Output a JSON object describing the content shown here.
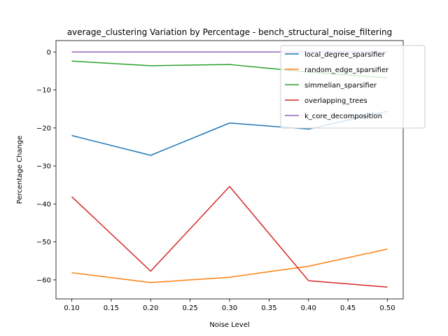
{
  "chart_data": {
    "type": "line",
    "title": "average_clustering Variation by Percentage - bench_structural_noise_filtering",
    "xlabel": "Noise Level",
    "ylabel": "Percentage Change",
    "xlim": [
      0.08,
      0.52
    ],
    "ylim": [
      -65,
      3
    ],
    "xticks": [
      0.1,
      0.15,
      0.2,
      0.25,
      0.3,
      0.35,
      0.4,
      0.45,
      0.5
    ],
    "xtick_labels": [
      "0.10",
      "0.15",
      "0.20",
      "0.25",
      "0.30",
      "0.35",
      "0.40",
      "0.45",
      "0.50"
    ],
    "yticks": [
      0,
      -10,
      -20,
      -30,
      -40,
      -50,
      -60
    ],
    "ytick_labels": [
      "0",
      "−10",
      "−20",
      "−30",
      "−40",
      "−50",
      "−60"
    ],
    "legend_position": "top-right",
    "grid": false,
    "x": [
      0.1,
      0.2,
      0.3,
      0.4,
      0.5
    ],
    "series": [
      {
        "name": "local_degree_sparsifier",
        "color": "#1f77b4",
        "values": [
          -22.0,
          -27.2,
          -18.7,
          -20.3,
          -15.6
        ]
      },
      {
        "name": "random_edge_sparsifier",
        "color": "#ff7f0e",
        "values": [
          -58.1,
          -60.7,
          -59.3,
          -56.4,
          -51.9
        ]
      },
      {
        "name": "simmelian_sparsifier",
        "color": "#2ca02c",
        "values": [
          -2.4,
          -3.6,
          -3.3,
          -5.3,
          -6.8
        ]
      },
      {
        "name": "overlapping_trees",
        "color": "#d62728",
        "values": [
          -38.1,
          -57.7,
          -35.4,
          -60.2,
          -61.9
        ]
      },
      {
        "name": "k_core_decomposition",
        "color": "#9467bd",
        "values": [
          0,
          0,
          0,
          0,
          0
        ]
      }
    ]
  }
}
